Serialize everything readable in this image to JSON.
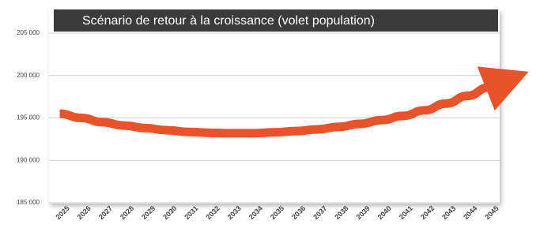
{
  "chart_data": {
    "type": "line",
    "title": "Scénario de retour à la croissance (volet population)",
    "categories": [
      "2025",
      "2026",
      "2027",
      "2028",
      "2029",
      "2030",
      "2031",
      "2032",
      "2033",
      "2034",
      "2035",
      "2036",
      "2037",
      "2038",
      "2039",
      "2040",
      "2041",
      "2042",
      "2043",
      "2044",
      "2045"
    ],
    "values": [
      195500,
      195000,
      194500,
      194100,
      193800,
      193550,
      193350,
      193250,
      193200,
      193200,
      193300,
      193450,
      193650,
      193950,
      194300,
      194750,
      195250,
      195900,
      196700,
      197600,
      198600
    ],
    "color": "#e8532b",
    "ylim": [
      185000,
      205000
    ],
    "yticks": [
      {
        "value": 185000,
        "label": "185 000"
      },
      {
        "value": 190000,
        "label": "190 000"
      },
      {
        "value": 195000,
        "label": "195 000"
      },
      {
        "value": 200000,
        "label": "200 000"
      },
      {
        "value": 205000,
        "label": "205 000"
      }
    ],
    "grid": true
  }
}
